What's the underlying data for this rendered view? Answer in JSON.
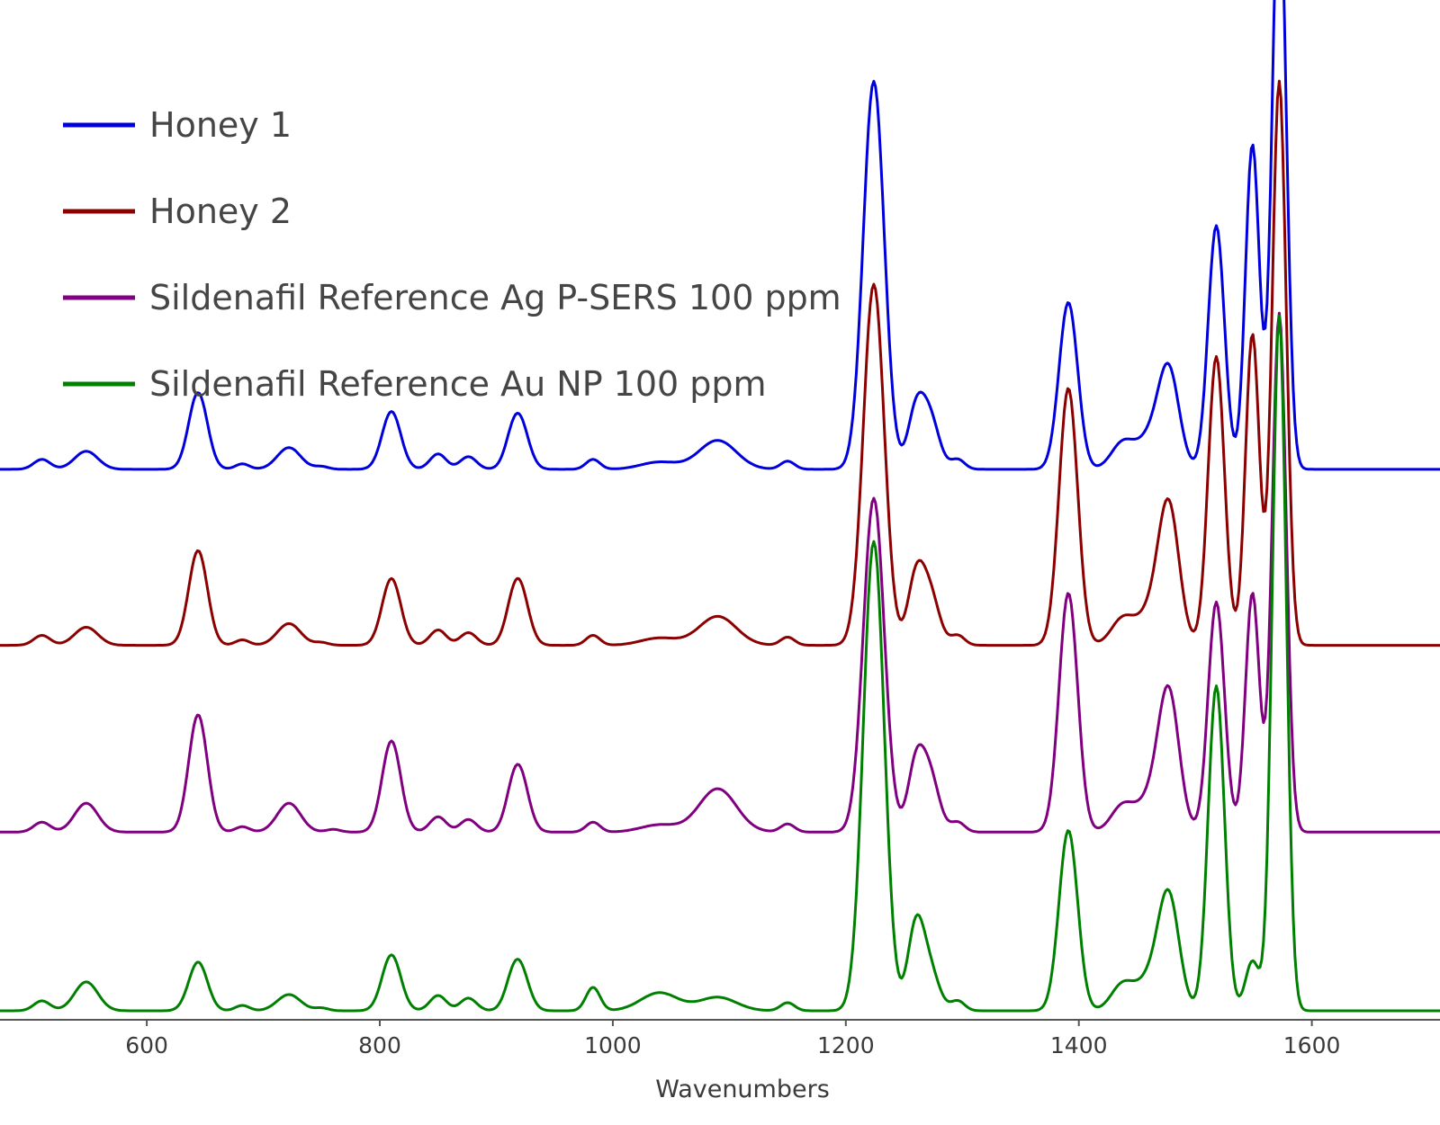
{
  "chart_data": {
    "type": "line",
    "title": "",
    "xlabel": "Wavenumbers",
    "ylabel": "",
    "xlim": [
      474,
      1710
    ],
    "ylim": [
      0,
      1.12
    ],
    "xticks": [
      600,
      800,
      1000,
      1200,
      1400,
      1600
    ],
    "yticks": [],
    "grid": false,
    "legend_position": "top-left",
    "series": [
      {
        "name": "Honey 1",
        "color": "#0000dd",
        "offset": 0.6,
        "peaks": [
          [
            510,
            0.011,
            7
          ],
          [
            548,
            0.02,
            10
          ],
          [
            644,
            0.085,
            8
          ],
          [
            682,
            0.006,
            6
          ],
          [
            722,
            0.024,
            10
          ],
          [
            750,
            0.003,
            6
          ],
          [
            810,
            0.064,
            8
          ],
          [
            850,
            0.017,
            7
          ],
          [
            876,
            0.014,
            7
          ],
          [
            912,
            0.006,
            6
          ],
          [
            919,
            0.059,
            8
          ],
          [
            983,
            0.011,
            6
          ],
          [
            1040,
            0.008,
            16
          ],
          [
            1090,
            0.032,
            16
          ],
          [
            1150,
            0.009,
            6
          ],
          [
            1224,
            0.43,
            9
          ],
          [
            1260,
            0.06,
            7
          ],
          [
            1272,
            0.057,
            8
          ],
          [
            1296,
            0.011,
            6
          ],
          [
            1391,
            0.185,
            8
          ],
          [
            1438,
            0.03,
            10
          ],
          [
            1460,
            0.03,
            10
          ],
          [
            1477,
            0.11,
            9
          ],
          [
            1518,
            0.27,
            7
          ],
          [
            1549,
            0.36,
            6
          ],
          [
            1572,
            0.66,
            6
          ]
        ]
      },
      {
        "name": "Honey 2",
        "color": "#8b0000",
        "offset": 0.405,
        "peaks": [
          [
            510,
            0.011,
            7
          ],
          [
            548,
            0.02,
            10
          ],
          [
            644,
            0.105,
            8
          ],
          [
            682,
            0.006,
            6
          ],
          [
            722,
            0.024,
            10
          ],
          [
            750,
            0.003,
            6
          ],
          [
            810,
            0.074,
            8
          ],
          [
            850,
            0.017,
            7
          ],
          [
            876,
            0.014,
            7
          ],
          [
            912,
            0.006,
            6
          ],
          [
            919,
            0.071,
            8
          ],
          [
            983,
            0.011,
            6
          ],
          [
            1040,
            0.008,
            16
          ],
          [
            1090,
            0.032,
            16
          ],
          [
            1150,
            0.009,
            6
          ],
          [
            1224,
            0.4,
            9
          ],
          [
            1260,
            0.07,
            7
          ],
          [
            1272,
            0.057,
            8
          ],
          [
            1296,
            0.011,
            6
          ],
          [
            1391,
            0.285,
            8
          ],
          [
            1438,
            0.03,
            10
          ],
          [
            1460,
            0.03,
            10
          ],
          [
            1477,
            0.155,
            9
          ],
          [
            1518,
            0.32,
            7
          ],
          [
            1549,
            0.345,
            6
          ],
          [
            1572,
            0.625,
            6
          ]
        ]
      },
      {
        "name": "Sildenafil Reference Ag P-SERS 100 ppm",
        "color": "#800080",
        "offset": 0.198,
        "peaks": [
          [
            510,
            0.011,
            7
          ],
          [
            548,
            0.032,
            10
          ],
          [
            644,
            0.13,
            8
          ],
          [
            682,
            0.006,
            6
          ],
          [
            722,
            0.032,
            10
          ],
          [
            760,
            0.003,
            6
          ],
          [
            810,
            0.101,
            8
          ],
          [
            850,
            0.017,
            7
          ],
          [
            876,
            0.014,
            7
          ],
          [
            912,
            0.006,
            6
          ],
          [
            919,
            0.072,
            8
          ],
          [
            983,
            0.011,
            6
          ],
          [
            1040,
            0.008,
            16
          ],
          [
            1090,
            0.048,
            16
          ],
          [
            1150,
            0.009,
            6
          ],
          [
            1224,
            0.37,
            9
          ],
          [
            1260,
            0.07,
            7
          ],
          [
            1272,
            0.062,
            8
          ],
          [
            1296,
            0.011,
            6
          ],
          [
            1391,
            0.265,
            8
          ],
          [
            1438,
            0.03,
            10
          ],
          [
            1460,
            0.03,
            10
          ],
          [
            1477,
            0.155,
            9
          ],
          [
            1518,
            0.255,
            7
          ],
          [
            1549,
            0.265,
            6
          ],
          [
            1572,
            0.575,
            6
          ]
        ]
      },
      {
        "name": "Sildenafil Reference Au NP 100 ppm",
        "color": "#008000",
        "offset": 0.0,
        "peaks": [
          [
            510,
            0.011,
            7
          ],
          [
            548,
            0.032,
            10
          ],
          [
            644,
            0.054,
            8
          ],
          [
            682,
            0.006,
            6
          ],
          [
            722,
            0.018,
            10
          ],
          [
            750,
            0.003,
            6
          ],
          [
            810,
            0.062,
            8
          ],
          [
            850,
            0.017,
            7
          ],
          [
            876,
            0.014,
            7
          ],
          [
            912,
            0.006,
            6
          ],
          [
            919,
            0.054,
            8
          ],
          [
            983,
            0.026,
            6
          ],
          [
            1040,
            0.02,
            16
          ],
          [
            1090,
            0.015,
            16
          ],
          [
            1150,
            0.009,
            6
          ],
          [
            1224,
            0.52,
            9
          ],
          [
            1260,
            0.09,
            7
          ],
          [
            1272,
            0.044,
            8
          ],
          [
            1296,
            0.011,
            6
          ],
          [
            1391,
            0.2,
            8
          ],
          [
            1438,
            0.03,
            10
          ],
          [
            1460,
            0.03,
            10
          ],
          [
            1477,
            0.127,
            9
          ],
          [
            1518,
            0.36,
            7
          ],
          [
            1549,
            0.055,
            6
          ],
          [
            1572,
            0.77,
            6
          ]
        ]
      }
    ]
  }
}
